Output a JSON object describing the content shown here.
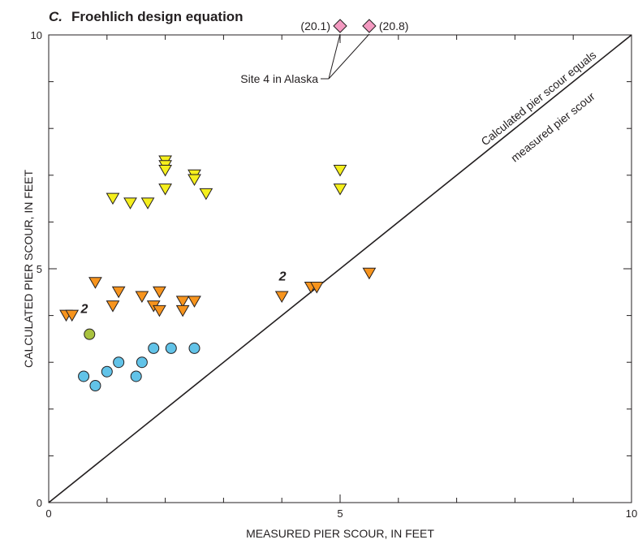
{
  "chart_data": {
    "type": "scatter",
    "panel_letter": "C.",
    "title": "Froehlich design equation",
    "xlabel": "MEASURED PIER SCOUR, IN FEET",
    "ylabel": "CALCULATED PIER SCOUR, IN FEET",
    "xlim": [
      0,
      10
    ],
    "ylim": [
      0,
      10
    ],
    "x_ticks": [
      0,
      5,
      10
    ],
    "y_ticks": [
      0,
      5,
      10
    ],
    "grid": false,
    "reference_line": {
      "x": [
        0,
        10
      ],
      "y": [
        0,
        10
      ],
      "label_line1": "Calculated pier scour equals",
      "label_line2": "measured pier scour"
    },
    "series": [
      {
        "marker": "triangle-down",
        "color": "#f5ef1c",
        "points": [
          {
            "x": 1.1,
            "y": 6.5
          },
          {
            "x": 1.4,
            "y": 6.4
          },
          {
            "x": 1.7,
            "y": 6.4
          },
          {
            "x": 2.0,
            "y": 7.3
          },
          {
            "x": 2.0,
            "y": 7.2
          },
          {
            "x": 2.0,
            "y": 7.1
          },
          {
            "x": 2.0,
            "y": 6.7
          },
          {
            "x": 2.5,
            "y": 7.0
          },
          {
            "x": 2.5,
            "y": 6.9
          },
          {
            "x": 2.7,
            "y": 6.6
          },
          {
            "x": 5.0,
            "y": 7.1
          },
          {
            "x": 5.0,
            "y": 6.7
          }
        ]
      },
      {
        "marker": "triangle-down",
        "color": "#f7941d",
        "points": [
          {
            "x": 0.3,
            "y": 4.0
          },
          {
            "x": 0.4,
            "y": 4.0
          },
          {
            "x": 0.8,
            "y": 4.7
          },
          {
            "x": 1.1,
            "y": 4.2
          },
          {
            "x": 1.2,
            "y": 4.5
          },
          {
            "x": 1.6,
            "y": 4.4
          },
          {
            "x": 1.8,
            "y": 4.2
          },
          {
            "x": 1.9,
            "y": 4.5
          },
          {
            "x": 1.9,
            "y": 4.1
          },
          {
            "x": 2.3,
            "y": 4.3
          },
          {
            "x": 2.3,
            "y": 4.1
          },
          {
            "x": 2.5,
            "y": 4.3
          },
          {
            "x": 4.0,
            "y": 4.4
          },
          {
            "x": 4.5,
            "y": 4.6
          },
          {
            "x": 4.6,
            "y": 4.6
          },
          {
            "x": 5.5,
            "y": 4.9
          }
        ]
      },
      {
        "marker": "circle",
        "color": "#a9c23f",
        "points": [
          {
            "x": 0.7,
            "y": 3.6
          }
        ]
      },
      {
        "marker": "circle",
        "color": "#62c3e8",
        "points": [
          {
            "x": 0.6,
            "y": 2.7
          },
          {
            "x": 0.8,
            "y": 2.5
          },
          {
            "x": 1.0,
            "y": 2.8
          },
          {
            "x": 1.2,
            "y": 3.0
          },
          {
            "x": 1.5,
            "y": 2.7
          },
          {
            "x": 1.6,
            "y": 3.0
          },
          {
            "x": 1.8,
            "y": 3.3
          },
          {
            "x": 2.1,
            "y": 3.3
          },
          {
            "x": 2.5,
            "y": 3.3
          }
        ]
      }
    ],
    "off_scale_points": [
      {
        "x": 5.0,
        "value_label": "(20.1)",
        "marker": "diamond",
        "color": "#f49ac1"
      },
      {
        "x": 5.5,
        "value_label": "(20.8)",
        "marker": "diamond",
        "color": "#f49ac1"
      }
    ],
    "off_scale_annotation": "Site 4 in Alaska",
    "count_labels": [
      {
        "x": 0.55,
        "y": 4.05,
        "text": "2"
      },
      {
        "x": 3.95,
        "y": 4.75,
        "text": "2"
      }
    ]
  }
}
